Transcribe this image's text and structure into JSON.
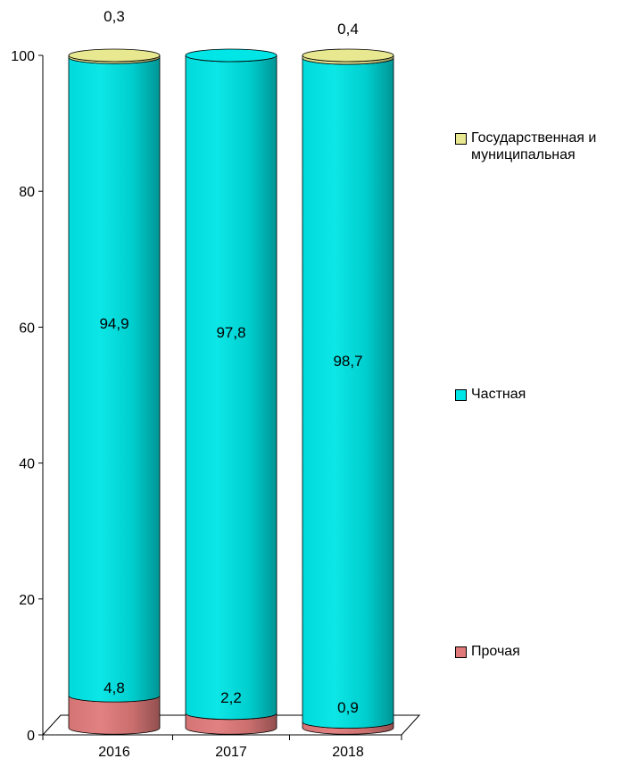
{
  "chart_data": {
    "type": "bar",
    "categories": [
      "2016",
      "2017",
      "2018"
    ],
    "series": [
      {
        "name": "Прочая",
        "values": [
          4.8,
          2.2,
          0.9
        ],
        "color": "#e07a7a",
        "labels": [
          "4,8",
          "2,2",
          "0,9"
        ]
      },
      {
        "name": "Частная",
        "values": [
          94.9,
          97.8,
          98.7
        ],
        "color": "#00e5e5",
        "labels": [
          "94,9",
          "97,8",
          "98,7"
        ]
      },
      {
        "name": "Государственная и муниципальная",
        "values": [
          0.3,
          0.0,
          0.4
        ],
        "color": "#e8e890",
        "labels": [
          "0,3",
          "",
          "0,4"
        ]
      }
    ],
    "ylim": [
      0,
      100
    ],
    "yticks": [
      "0",
      "20",
      "40",
      "60",
      "80",
      "100"
    ],
    "legend_position": "right",
    "stacked": true,
    "shape": "cylinder"
  },
  "legend": [
    {
      "key": "gov",
      "line1": "Государственная и",
      "line2": "муниципальная",
      "color": "#e8e890"
    },
    {
      "key": "private",
      "line1": "Частная",
      "line2": "",
      "color": "#00e5e5"
    },
    {
      "key": "other",
      "line1": "Прочая",
      "line2": "",
      "color": "#e07a7a"
    }
  ]
}
